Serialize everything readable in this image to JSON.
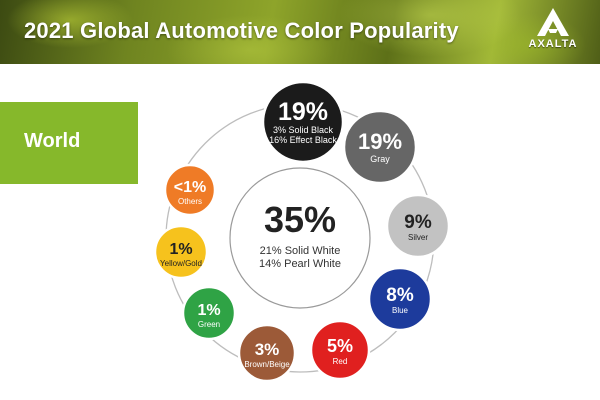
{
  "header": {
    "title": "2021 Global Automotive Color Popularity",
    "logo_text": "AXALTA"
  },
  "region": {
    "label": "World"
  },
  "chart_data": {
    "type": "bubble-ring",
    "title": "2021 Global Automotive Color Popularity",
    "region": "World",
    "center": {
      "name": "White",
      "value_label": "35%",
      "value": 35,
      "details": [
        "21% Solid White",
        "14% Pearl White"
      ],
      "color": "#ffffff"
    },
    "categories": [
      "Black",
      "Gray",
      "Silver",
      "Blue",
      "Red",
      "Brown/Beige",
      "Green",
      "Yellow/Gold",
      "Others"
    ],
    "values": [
      19,
      19,
      9,
      8,
      5,
      3,
      1,
      1,
      1
    ],
    "items": [
      {
        "name": "Black",
        "value_label": "19%",
        "details": [
          "3% Solid Black",
          "16% Effect Black"
        ],
        "color": "#1b1b1b"
      },
      {
        "name": "Gray",
        "value_label": "19%",
        "details": [
          "Gray"
        ],
        "color": "#666666"
      },
      {
        "name": "Silver",
        "value_label": "9%",
        "details": [
          "Silver"
        ],
        "color": "#c2c2c2"
      },
      {
        "name": "Blue",
        "value_label": "8%",
        "details": [
          "Blue"
        ],
        "color": "#1d3b9c"
      },
      {
        "name": "Red",
        "value_label": "5%",
        "details": [
          "Red"
        ],
        "color": "#e0201f"
      },
      {
        "name": "Brown/Beige",
        "value_label": "3%",
        "details": [
          "Brown/Beige"
        ],
        "color": "#9c5a38"
      },
      {
        "name": "Green",
        "value_label": "1%",
        "details": [
          "Green"
        ],
        "color": "#2fa345"
      },
      {
        "name": "Yellow/Gold",
        "value_label": "1%",
        "details": [
          "Yellow/Gold"
        ],
        "color": "#f6c21d"
      },
      {
        "name": "Others",
        "value_label": "<1%",
        "details": [
          "Others"
        ],
        "color": "#ef7b26"
      }
    ]
  }
}
